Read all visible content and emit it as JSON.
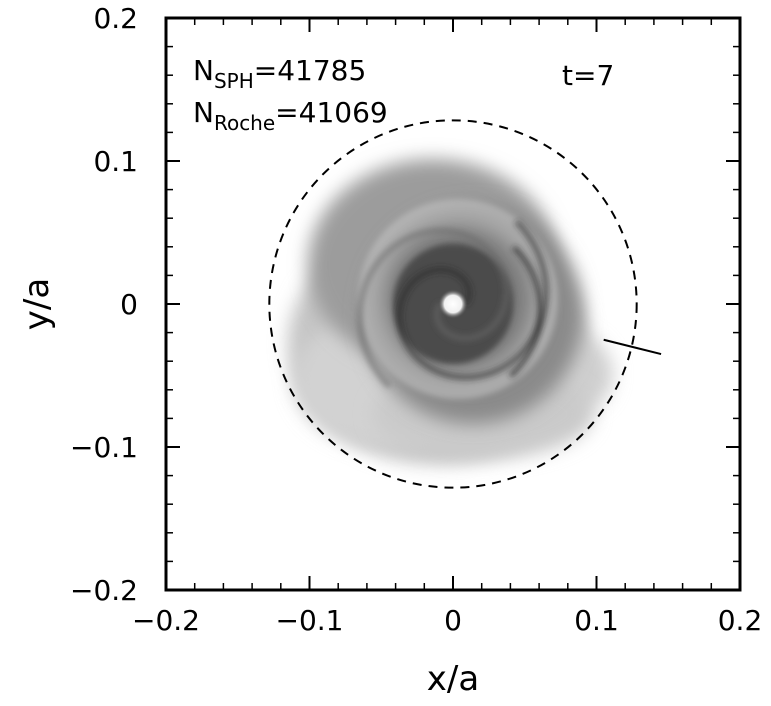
{
  "chart_data": {
    "type": "heatmap",
    "title": "",
    "xlabel": "x/a",
    "ylabel": "y/a",
    "xlim": [
      -0.2,
      0.2
    ],
    "ylim": [
      -0.2,
      0.2
    ],
    "x_ticks": [
      -0.2,
      -0.1,
      0,
      0.1,
      0.2
    ],
    "y_ticks": [
      -0.2,
      -0.1,
      0,
      0.1,
      0.2
    ],
    "x_tick_labels": [
      "−0.2",
      "−0.1",
      "0",
      "0.1",
      "0.2"
    ],
    "y_tick_labels": [
      "−0.2",
      "−0.1",
      "0",
      "0.1",
      "0.2"
    ],
    "grid": false,
    "colormap": "grayscale",
    "annotations": {
      "n_sph": {
        "prefix": "N",
        "sub": "SPH",
        "suffix": "=41785"
      },
      "n_roche": {
        "prefix": "N",
        "sub": "Roche",
        "suffix": "=41069"
      },
      "time": "t=7"
    },
    "roche_lobe_circle": {
      "center": [
        0,
        0
      ],
      "radius": 0.128,
      "style": "dashed"
    },
    "tick_line": {
      "from": [
        0.105,
        -0.025
      ],
      "to": [
        0.145,
        -0.035
      ]
    },
    "disk": {
      "center": [
        0,
        0
      ],
      "core_hole_radius": 0.006,
      "spiral_arms": 2,
      "extent": {
        "x": [
          -0.09,
          0.09
        ],
        "y": [
          -0.11,
          0.07
        ]
      }
    }
  }
}
